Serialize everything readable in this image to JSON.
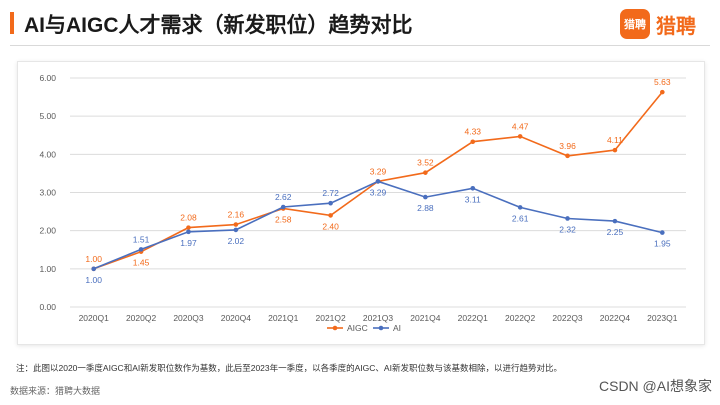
{
  "header": {
    "title": "AI与AIGC人才需求（新发职位）趋势对比",
    "logo_mark": "猎聘",
    "logo_text": "猎聘"
  },
  "note": "注：此图以2020一季度AIGC和AI新发职位数作为基数，此后至2023年一季度，以各季度的AIGC、AI新发职位数与该基数相除，以进行趋势对比。",
  "source": "数据来源：猎聘大数据",
  "watermark": "CSDN @AI想象家",
  "colors": {
    "aigc": "#f26a1b",
    "ai": "#4a6fbe",
    "accent": "#f26a1b"
  },
  "chart_data": {
    "type": "line",
    "categories": [
      "2020Q1",
      "2020Q2",
      "2020Q3",
      "2020Q4",
      "2021Q1",
      "2021Q2",
      "2021Q3",
      "2021Q4",
      "2022Q1",
      "2022Q2",
      "2022Q3",
      "2022Q4",
      "2023Q1"
    ],
    "series": [
      {
        "name": "AIGC",
        "values": [
          1.0,
          1.45,
          2.08,
          2.16,
          2.58,
          2.4,
          3.29,
          3.52,
          4.33,
          4.47,
          3.96,
          4.11,
          5.63
        ]
      },
      {
        "name": "AI",
        "values": [
          1.0,
          1.51,
          1.97,
          2.02,
          2.62,
          2.72,
          3.29,
          2.88,
          3.11,
          2.61,
          2.32,
          2.25,
          1.95
        ]
      }
    ],
    "y_ticks": [
      "0.00",
      "1.00",
      "2.00",
      "3.00",
      "4.00",
      "5.00",
      "6.00"
    ],
    "ylim": [
      0,
      6
    ],
    "grid": true,
    "legend": "bottom"
  }
}
